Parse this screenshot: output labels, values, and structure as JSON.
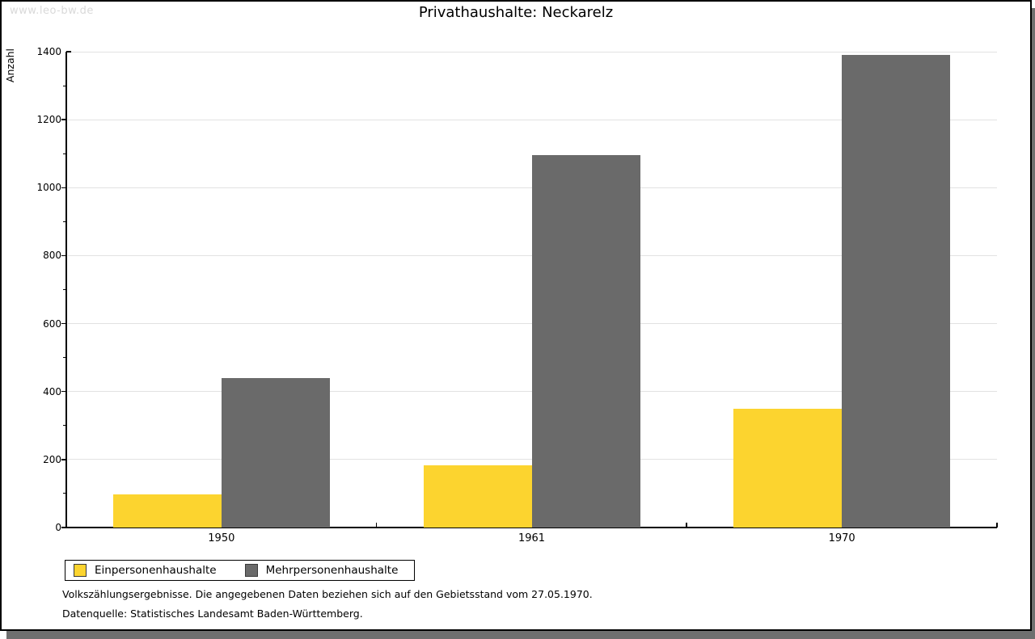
{
  "watermark": "www.leo-bw.de",
  "chart_data": {
    "type": "bar",
    "title": "Privathaushalte: Neckarelz",
    "xlabel": "",
    "ylabel": "Anzahl",
    "categories": [
      "1950",
      "1961",
      "1970"
    ],
    "series": [
      {
        "name": "Einpersonenhaushalte",
        "color": "#FCD42F",
        "values": [
          98,
          182,
          350
        ]
      },
      {
        "name": "Mehrpersonenhaushalte",
        "color": "#6A6A6A",
        "values": [
          440,
          1095,
          1390
        ]
      }
    ],
    "ylim": [
      0,
      1400
    ],
    "ytick_step": 200,
    "minor_tick_step": 100,
    "grid": "horizontal-major-only",
    "legend_position": "bottom-left-boxed"
  },
  "footnotes": {
    "line1": "Volkszählungsergebnisse. Die angegebenen Daten beziehen sich auf den Gebietsstand vom 27.05.1970.",
    "line2": "Datenquelle: Statistisches Landesamt Baden-Württemberg."
  },
  "colors": {
    "bar_yellow": "#FCD42F",
    "bar_gray": "#6A6A6A",
    "gridline": "#E2E2E2",
    "axis": "#000000",
    "frame_border": "#000000",
    "frame_shadow": "#6F6F6F",
    "watermark_text": "#D9D9D9"
  }
}
